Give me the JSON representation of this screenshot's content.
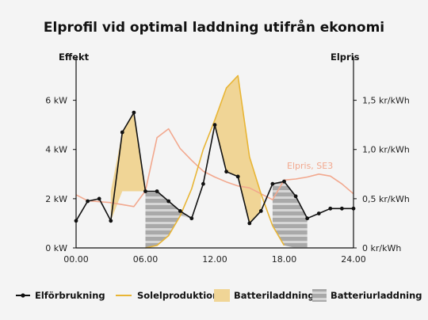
{
  "chart_data": {
    "type": "line",
    "title": "Elprofil vid optimal laddning utifrån ekonomi",
    "y_left_label": "Effekt",
    "y_right_label": "Elpris",
    "x_ticks": [
      "00.00",
      "06.00",
      "12.00",
      "18.00",
      "24.00"
    ],
    "x_tick_values": [
      0,
      6,
      12,
      18,
      24
    ],
    "y_left_ticks": [
      "0 kW",
      "2 kW",
      "4 kW",
      "6 kW"
    ],
    "y_left_tick_values": [
      0,
      2,
      4,
      6
    ],
    "y_right_ticks": [
      "0 kr/kWh",
      "0,5 kr/kWh",
      "1,0 kr/kWh",
      "1,5 kr/kWh"
    ],
    "y_right_tick_values": [
      0,
      0.5,
      1.0,
      1.5
    ],
    "xlim": [
      0,
      24
    ],
    "ylim_left": [
      0,
      7.5
    ],
    "ylim_right": [
      0,
      1.875
    ],
    "grid": false,
    "legend_position": "bottom",
    "price_annotation": "Elpris, SE3",
    "colors": {
      "consumption": "#111111",
      "solar": "#e8b535",
      "charge_fill": "#f0d596",
      "discharge_fill": "#a9a9a9",
      "discharge_stripe": "#d6d6d6",
      "price": "#f2a88e",
      "background": "#f4f4f4"
    },
    "series": [
      {
        "name": "Elförbrukning",
        "x": [
          0,
          1,
          2,
          3,
          4,
          5,
          6,
          7,
          8,
          9,
          10,
          11,
          12,
          13,
          14,
          15,
          16,
          17,
          18,
          19,
          20,
          21,
          22,
          23,
          24
        ],
        "values": [
          1.1,
          1.9,
          2.0,
          1.1,
          4.7,
          5.5,
          2.3,
          2.3,
          1.9,
          1.5,
          1.2,
          2.6,
          5.0,
          3.1,
          2.9,
          1.0,
          1.5,
          2.6,
          2.7,
          2.1,
          1.2,
          1.4,
          1.6,
          1.6,
          1.6
        ]
      },
      {
        "name": "Solelproduktion",
        "x": [
          6,
          7,
          8,
          9,
          10,
          11,
          12,
          13,
          14,
          15,
          16,
          17,
          18
        ],
        "values": [
          0,
          0.1,
          0.5,
          1.3,
          2.4,
          4.0,
          5.2,
          6.5,
          7.0,
          3.7,
          2.2,
          0.9,
          0.1
        ]
      },
      {
        "name": "Elpris, SE3",
        "axis": "right",
        "x": [
          0,
          1,
          2,
          3,
          4,
          5,
          6,
          7,
          8,
          9,
          10,
          11,
          12,
          13,
          14,
          15,
          16,
          17,
          18,
          19,
          20,
          21,
          22,
          23,
          24
        ],
        "values": [
          0.54,
          0.48,
          0.47,
          0.46,
          0.44,
          0.42,
          0.58,
          1.12,
          1.21,
          1.01,
          0.89,
          0.78,
          0.72,
          0.67,
          0.63,
          0.61,
          0.55,
          0.49,
          0.69,
          0.7,
          0.72,
          0.75,
          0.73,
          0.65,
          0.55
        ]
      }
    ],
    "battery_charging": {
      "name": "Batteriladdning"
    },
    "battery_discharging": {
      "name": "Batteriurladdning"
    }
  }
}
